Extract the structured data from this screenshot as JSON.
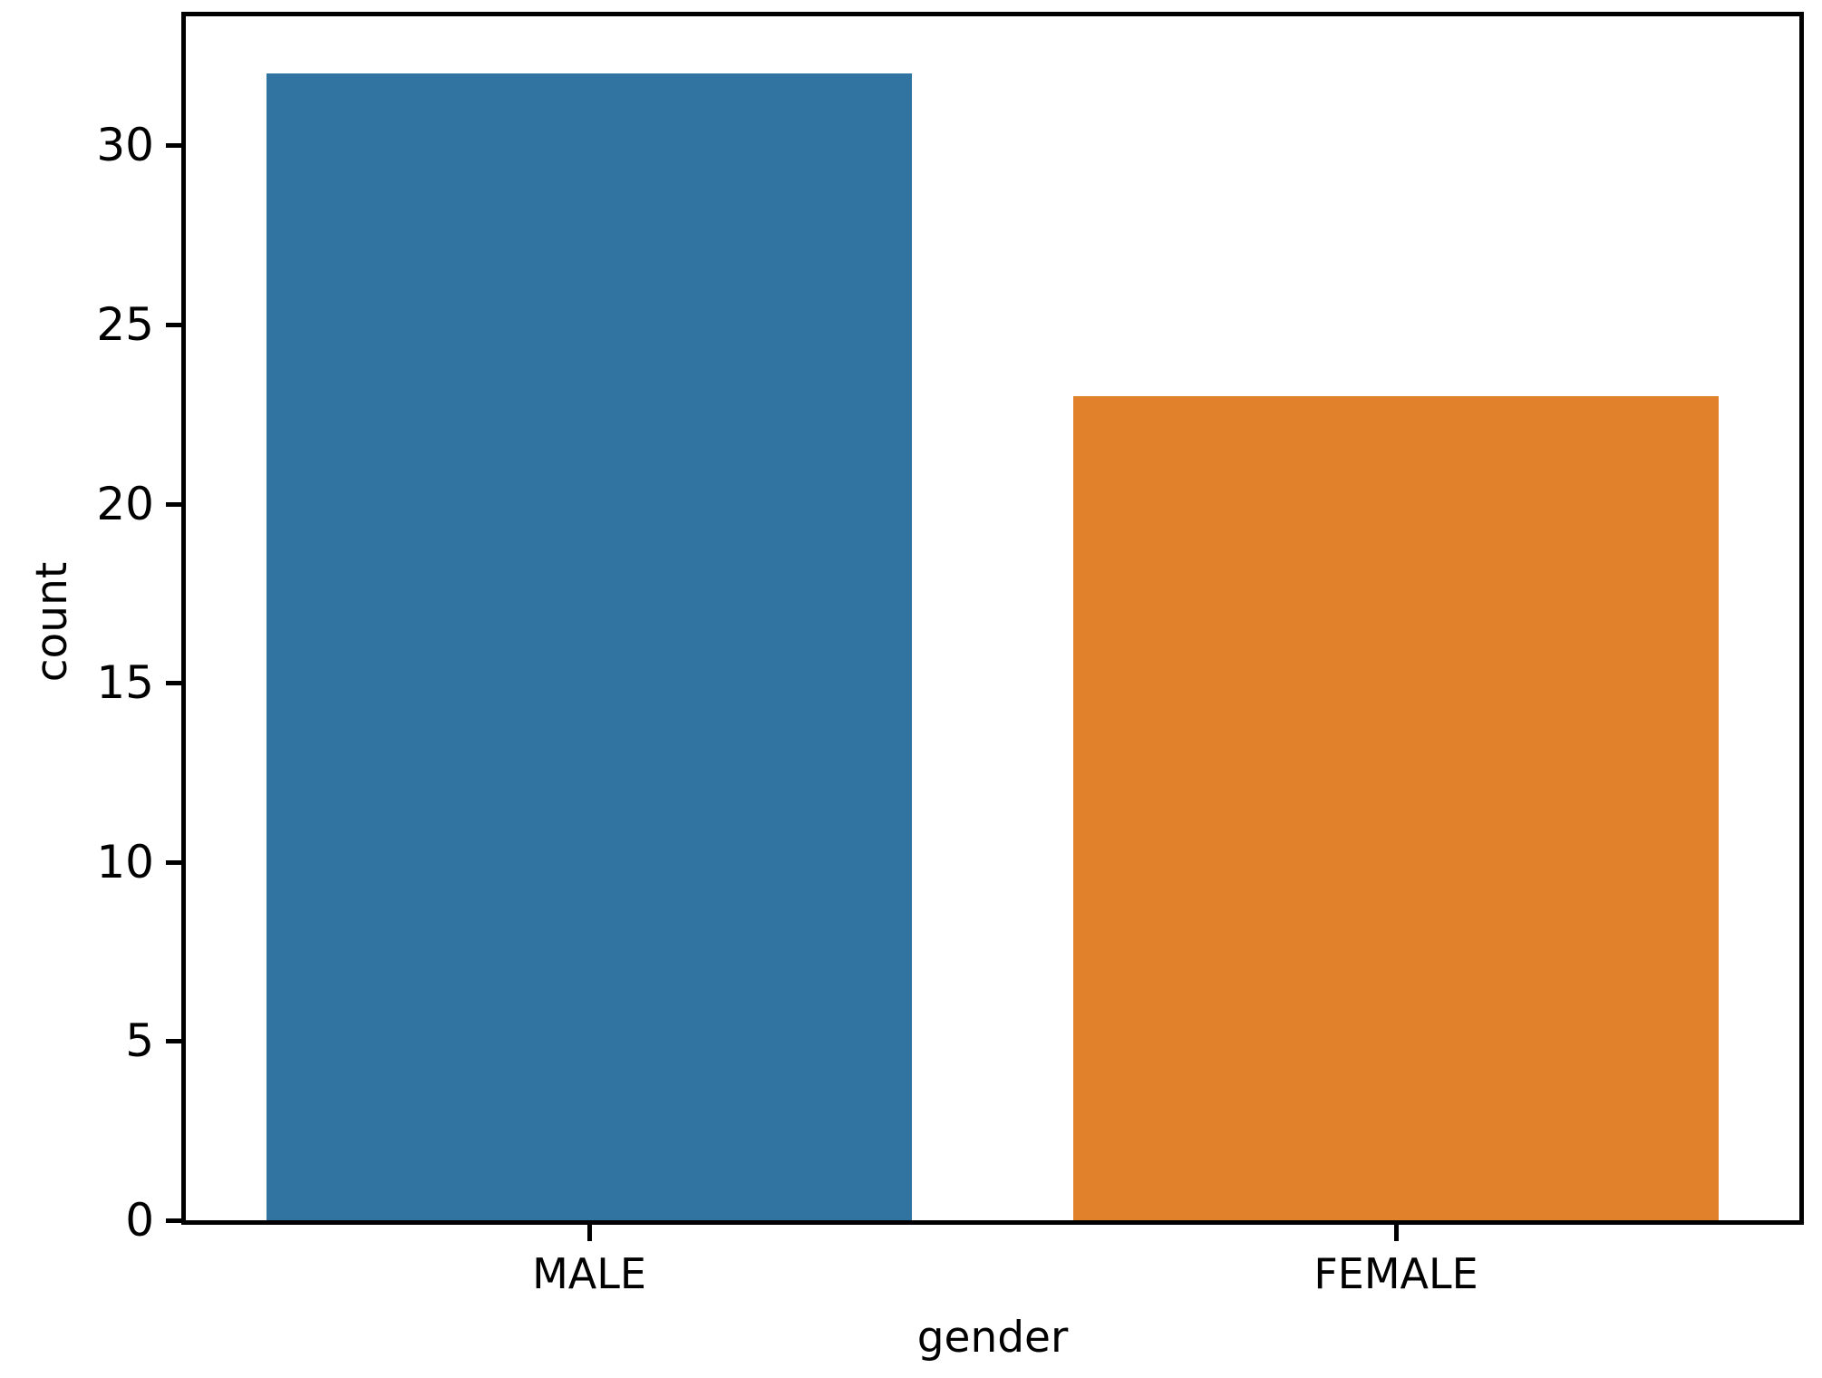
{
  "chart_data": {
    "type": "bar",
    "categories": [
      "MALE",
      "FEMALE"
    ],
    "values": [
      32,
      23
    ],
    "bar_colors": [
      "#3274A1",
      "#E1812C"
    ],
    "xlabel": "gender",
    "ylabel": "count",
    "yticks": [
      0,
      5,
      10,
      15,
      20,
      25,
      30
    ],
    "ylim": [
      0,
      33.6
    ],
    "grid": false,
    "legend": false,
    "title": "",
    "background_color": "#FFFFFF",
    "axis_color": "#000000"
  }
}
